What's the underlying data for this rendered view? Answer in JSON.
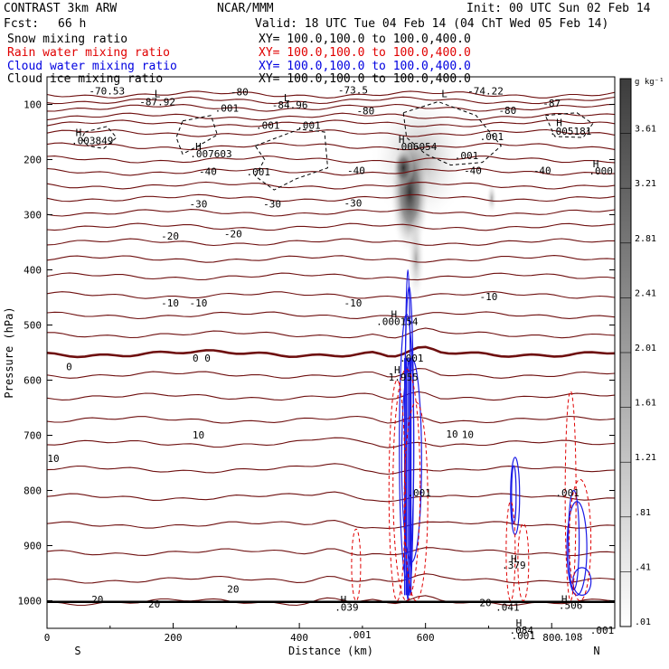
{
  "header": {
    "title_left": "CONTRAST  3km ARW",
    "title_center": "NCAR/MMM",
    "init": "Init: 00 UTC Sun 02 Feb 14",
    "fcst_label": "Fcst:",
    "fcst_value": "66 h",
    "valid": "Valid: 18 UTC Tue 04 Feb 14 (04 ChT Wed 05 Feb 14)"
  },
  "legend": [
    {
      "name": "Snow mixing ratio",
      "xy": "XY= 100.0,100.0 to 100.0,400.0",
      "color": "#000000"
    },
    {
      "name": "Rain water mixing ratio",
      "xy": "XY= 100.0,100.0 to 100.0,400.0",
      "color": "#e00000"
    },
    {
      "name": "Cloud water mixing ratio",
      "xy": "XY= 100.0,100.0 to 100.0,400.0",
      "color": "#0000e0"
    },
    {
      "name": "Cloud ice mixing ratio",
      "xy": "XY= 100.0,100.0 to 100.0,400.0",
      "color": "#000000"
    }
  ],
  "chart_data": {
    "type": "contour",
    "xlabel": "Distance (km)",
    "ylabel": "Pressure (hPa)",
    "xlim": [
      0,
      900
    ],
    "ylim": [
      1050,
      50
    ],
    "x_ticks": [
      0,
      200,
      400,
      600,
      800
    ],
    "y_ticks": [
      100,
      200,
      300,
      400,
      500,
      600,
      700,
      800,
      900,
      1000
    ],
    "x_ends": {
      "left": "S",
      "right": "N"
    },
    "colorbar": {
      "unit": "g kg⁻¹",
      "labels": [
        "3.61",
        "3.21",
        "2.81",
        "2.41",
        "2.01",
        "1.61",
        "1.21",
        ".81",
        ".41",
        ".01"
      ]
    },
    "temperature_contours": [
      -80,
      -70,
      -60,
      -50,
      -40,
      -30,
      -20,
      -10,
      0,
      10,
      20
    ],
    "annotations": [
      {
        "text": "-70.53",
        "x": 95,
        "p": 82
      },
      {
        "text": "L",
        "x": 175,
        "p": 87
      },
      {
        "text": "-80",
        "x": 305,
        "p": 84
      },
      {
        "text": "-73.5",
        "x": 485,
        "p": 80
      },
      {
        "text": "L",
        "x": 630,
        "p": 87
      },
      {
        "text": "-74.22",
        "x": 695,
        "p": 82
      },
      {
        "text": "-87.92",
        "x": 175,
        "p": 102
      },
      {
        "text": "L",
        "x": 380,
        "p": 94
      },
      {
        "text": "-84.96",
        "x": 385,
        "p": 107
      },
      {
        "text": "-87",
        "x": 800,
        "p": 104
      },
      {
        "text": ".001",
        "x": 285,
        "p": 113
      },
      {
        "text": "-80",
        "x": 505,
        "p": 118
      },
      {
        "text": "-80",
        "x": 730,
        "p": 117
      },
      {
        "text": ".001",
        "x": 350,
        "p": 144
      },
      {
        "text": ".001",
        "x": 415,
        "p": 144
      },
      {
        "text": "H",
        "x": 50,
        "p": 157
      },
      {
        "text": ".003849",
        "x": 72,
        "p": 172
      },
      {
        "text": "H",
        "x": 812,
        "p": 139
      },
      {
        "text": ".005181",
        "x": 830,
        "p": 155
      },
      {
        "text": ".001",
        "x": 705,
        "p": 165
      },
      {
        "text": "H",
        "x": 562,
        "p": 170
      },
      {
        "text": ".006054",
        "x": 585,
        "p": 183
      },
      {
        "text": "H",
        "x": 240,
        "p": 183
      },
      {
        "text": ".007603",
        "x": 260,
        "p": 196
      },
      {
        "text": ".001",
        "x": 665,
        "p": 199
      },
      {
        "text": "H",
        "x": 870,
        "p": 214
      },
      {
        "text": ".000",
        "x": 878,
        "p": 227
      },
      {
        "text": "-40",
        "x": 255,
        "p": 228
      },
      {
        "text": ".001",
        "x": 335,
        "p": 229
      },
      {
        "text": "-40",
        "x": 490,
        "p": 226
      },
      {
        "text": "-40",
        "x": 675,
        "p": 226
      },
      {
        "text": "-40",
        "x": 785,
        "p": 226
      },
      {
        "text": "-30",
        "x": 240,
        "p": 287
      },
      {
        "text": "-30",
        "x": 357,
        "p": 287
      },
      {
        "text": "-30",
        "x": 485,
        "p": 285
      },
      {
        "text": "-20",
        "x": 195,
        "p": 345
      },
      {
        "text": "-20",
        "x": 295,
        "p": 341
      },
      {
        "text": "-10",
        "x": 195,
        "p": 466
      },
      {
        "text": "-10",
        "x": 240,
        "p": 466
      },
      {
        "text": "-10",
        "x": 485,
        "p": 466
      },
      {
        "text": "-10",
        "x": 700,
        "p": 455
      },
      {
        "text": "H",
        "x": 550,
        "p": 487
      },
      {
        "text": ".000154",
        "x": 555,
        "p": 500
      },
      {
        "text": "0",
        "x": 35,
        "p": 582
      },
      {
        "text": "0 0",
        "x": 245,
        "p": 566
      },
      {
        "text": ".001",
        "x": 578,
        "p": 566
      },
      {
        "text": "H",
        "x": 555,
        "p": 588
      },
      {
        "text": "1.955",
        "x": 565,
        "p": 601
      },
      {
        "text": "10",
        "x": 240,
        "p": 706
      },
      {
        "text": "10",
        "x": 10,
        "p": 748
      },
      {
        "text": "10",
        "x": 642,
        "p": 704
      },
      {
        "text": "10",
        "x": 667,
        "p": 705
      },
      {
        "text": ".001",
        "x": 590,
        "p": 811
      },
      {
        "text": ".001",
        "x": 825,
        "p": 811
      },
      {
        "text": "H",
        "x": 740,
        "p": 930
      },
      {
        "text": ".379",
        "x": 740,
        "p": 942
      },
      {
        "text": "H",
        "x": 470,
        "p": 1004
      },
      {
        "text": ".039",
        "x": 475,
        "p": 1018
      },
      {
        "text": "20",
        "x": 80,
        "p": 1004
      },
      {
        "text": "20",
        "x": 170,
        "p": 1012
      },
      {
        "text": "20",
        "x": 295,
        "p": 985
      },
      {
        "text": "20",
        "x": 695,
        "p": 1010
      },
      {
        "text": ".041",
        "x": 730,
        "p": 1018
      },
      {
        "text": "H",
        "x": 820,
        "p": 1003
      },
      {
        "text": ".506",
        "x": 830,
        "p": 1015
      },
      {
        "text": "H",
        "x": 748,
        "p": 1047
      },
      {
        "text": ".084",
        "x": 752,
        "p": 1060
      },
      {
        "text": ".001",
        "x": 495,
        "p": 1068
      },
      {
        "text": ".001",
        "x": 755,
        "p": 1070
      },
      {
        "text": ".001",
        "x": 880,
        "p": 1060
      },
      {
        "text": ".108",
        "x": 830,
        "p": 1072
      }
    ]
  }
}
